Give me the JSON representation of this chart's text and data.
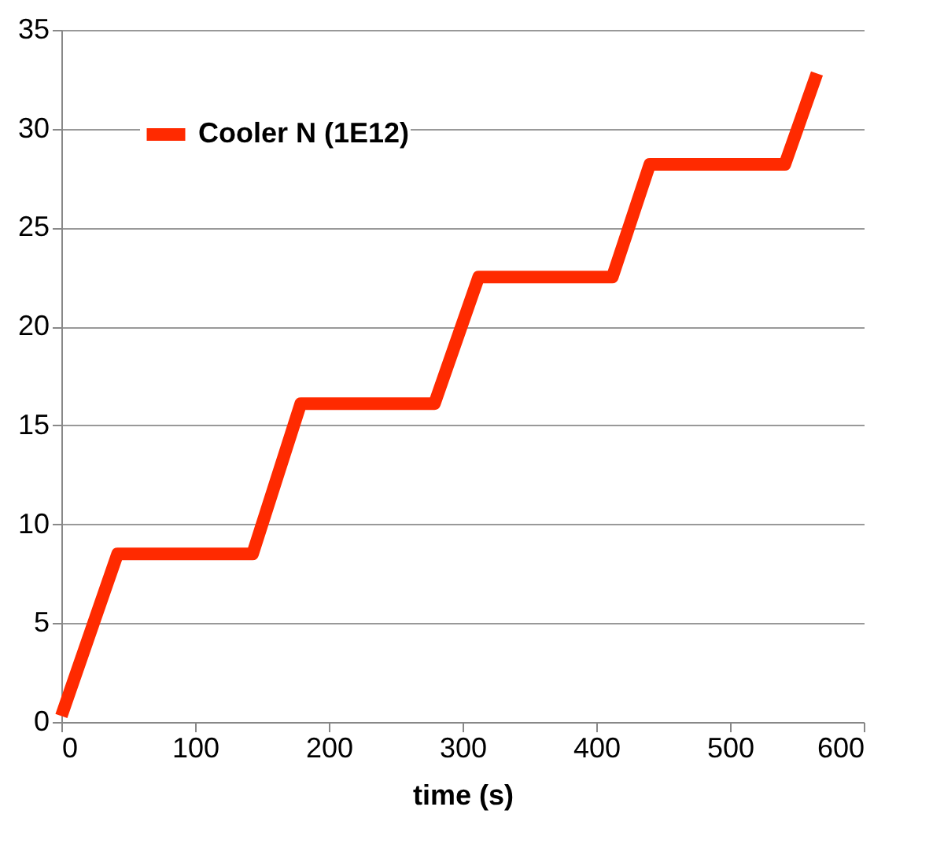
{
  "chart_data": {
    "type": "line",
    "xlabel": "time (s)",
    "series": [
      {
        "name": "Cooler N (1E12)",
        "color": "#ff2a00",
        "x": [
          0,
          42,
          143,
          179,
          279,
          312,
          412,
          440,
          541,
          565
        ],
        "values": [
          0.3,
          8.5,
          8.5,
          16.1,
          16.1,
          22.5,
          22.5,
          28.2,
          28.2,
          32.8
        ]
      }
    ],
    "xlim": [
      0,
      600
    ],
    "xticks": [
      0,
      100,
      200,
      300,
      400,
      500,
      600
    ],
    "ylim": [
      0,
      35
    ],
    "yticks": [
      0,
      5,
      10,
      15,
      20,
      25,
      30,
      35
    ],
    "grid": "y",
    "legend": "top left",
    "marker": "none",
    "line_style": "solid"
  }
}
